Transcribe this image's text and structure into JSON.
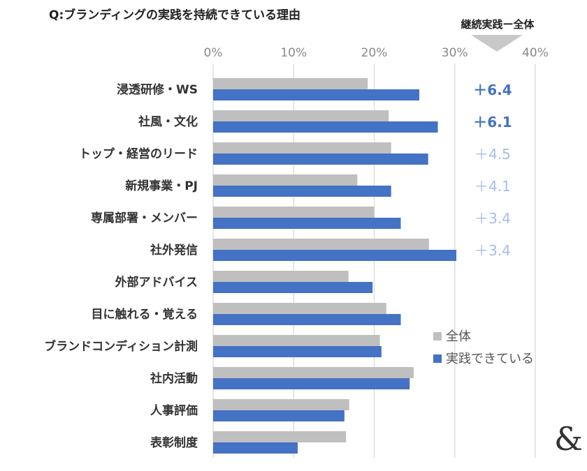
{
  "title": "Q:ブランディングの実践を持続できている理由",
  "diff_header": "継続実践ー全体",
  "logo_text": "&",
  "colors": {
    "all": "#bfbfbf",
    "practicing": "#4472c4",
    "diff_strong": "#4472c4",
    "diff_light": "#a9bde6",
    "grid": "#d9d9d9",
    "triangle": "#c8c8c8"
  },
  "chart_data": {
    "type": "bar",
    "orientation": "horizontal",
    "title": "Q:ブランディングの実践を持続できている理由",
    "xlim": [
      0,
      40
    ],
    "x_ticks": [
      "0%",
      "10%",
      "20%",
      "30%",
      "40%"
    ],
    "x_tick_values": [
      0,
      10,
      20,
      30,
      40
    ],
    "categories": [
      "浸透研修・WS",
      "社風・文化",
      "トップ・経営のリード",
      "新規事業・PJ",
      "専属部署・メンバー",
      "社外発信",
      "外部アドバイス",
      "目に触れる・覚える",
      "ブランドコンディション計測",
      "社内活動",
      "人事評価",
      "表彰制度"
    ],
    "series": [
      {
        "name": "全体",
        "values": [
          19.2,
          21.8,
          22.1,
          17.9,
          20.0,
          26.8,
          16.8,
          21.5,
          20.7,
          24.9,
          16.9,
          16.5
        ]
      },
      {
        "name": "実践できている",
        "values": [
          25.6,
          27.9,
          26.7,
          22.1,
          23.3,
          30.2,
          19.8,
          23.3,
          20.9,
          24.4,
          16.3,
          10.5
        ]
      }
    ],
    "differences": [
      {
        "label": "＋6.4",
        "emphasis": "strong"
      },
      {
        "label": "＋6.1",
        "emphasis": "strong"
      },
      {
        "label": "＋4.5",
        "emphasis": "light"
      },
      {
        "label": "＋4.1",
        "emphasis": "light"
      },
      {
        "label": "＋3.4",
        "emphasis": "light"
      },
      {
        "label": "＋3.4",
        "emphasis": "light"
      }
    ],
    "legend": {
      "position": "right",
      "entries": [
        "全体",
        "実践できている"
      ]
    },
    "grid": true
  }
}
